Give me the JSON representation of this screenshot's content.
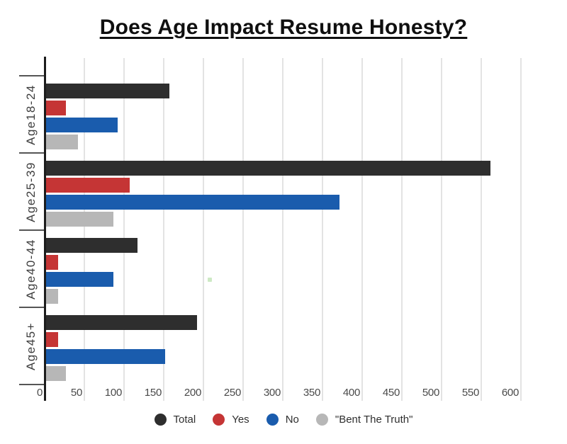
{
  "title": "Does Age Impact Resume Honesty?",
  "chart_data": {
    "type": "bar",
    "orientation": "horizontal",
    "title": "Does Age Impact Resume Honesty?",
    "categories": [
      "Age18-24",
      "Age25-39",
      "Age40-44",
      "Age45+"
    ],
    "series": [
      {
        "name": "Total",
        "color": "#2e2e2e",
        "values": [
          155,
          560,
          115,
          190
        ]
      },
      {
        "name": "Yes",
        "color": "#c53535",
        "values": [
          25,
          105,
          15,
          15
        ]
      },
      {
        "name": "No",
        "color": "#1a5cad",
        "values": [
          90,
          370,
          85,
          150
        ]
      },
      {
        "name": "\"Bent The Truth\"",
        "color": "#b7b7b7",
        "values": [
          40,
          85,
          15,
          25
        ]
      }
    ],
    "xlabel": "",
    "ylabel": "",
    "xlim": [
      0,
      631
    ],
    "xticks": [
      0,
      50,
      100,
      150,
      200,
      250,
      300,
      350,
      400,
      450,
      500,
      550,
      600
    ],
    "xtick_labels": [
      "0",
      "50",
      "100",
      "150",
      "200",
      "250",
      "300",
      "350",
      "400",
      "450",
      "500",
      "550",
      "600"
    ],
    "grid": "vertical-gridlines",
    "legend_position": "bottom-center"
  },
  "colors": {
    "background": "#ffffff",
    "axis": "#1c1c1c",
    "gridline": "#e3e3e3",
    "group_tick": "#555555",
    "tick_label": "#4a4a4a",
    "category_label": "#3d3d3d",
    "legend_label": "#2f2f2f",
    "artifact_dot": "#cde9c4"
  }
}
